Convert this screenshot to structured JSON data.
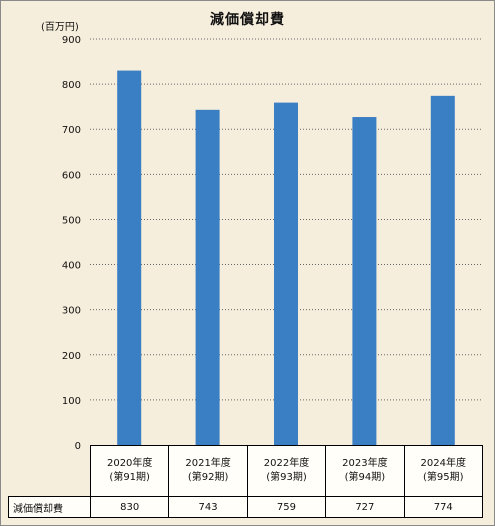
{
  "chart_data": {
    "type": "bar",
    "title": "減価償却費",
    "unit_label": "(百万円)",
    "categories": [
      [
        "2020年度",
        "(第91期)"
      ],
      [
        "2021年度",
        "(第92期)"
      ],
      [
        "2022年度",
        "(第93期)"
      ],
      [
        "2023年度",
        "(第94期)"
      ],
      [
        "2024年度",
        "(第95期)"
      ]
    ],
    "series": [
      {
        "name": "減価償却費",
        "values": [
          830,
          743,
          759,
          727,
          774
        ],
        "color": "#3a7ec4"
      }
    ],
    "ylim": [
      0,
      900
    ],
    "yticks": [
      0,
      100,
      200,
      300,
      400,
      500,
      600,
      700,
      800,
      900
    ],
    "grid": true,
    "legend": "data table below chart"
  }
}
